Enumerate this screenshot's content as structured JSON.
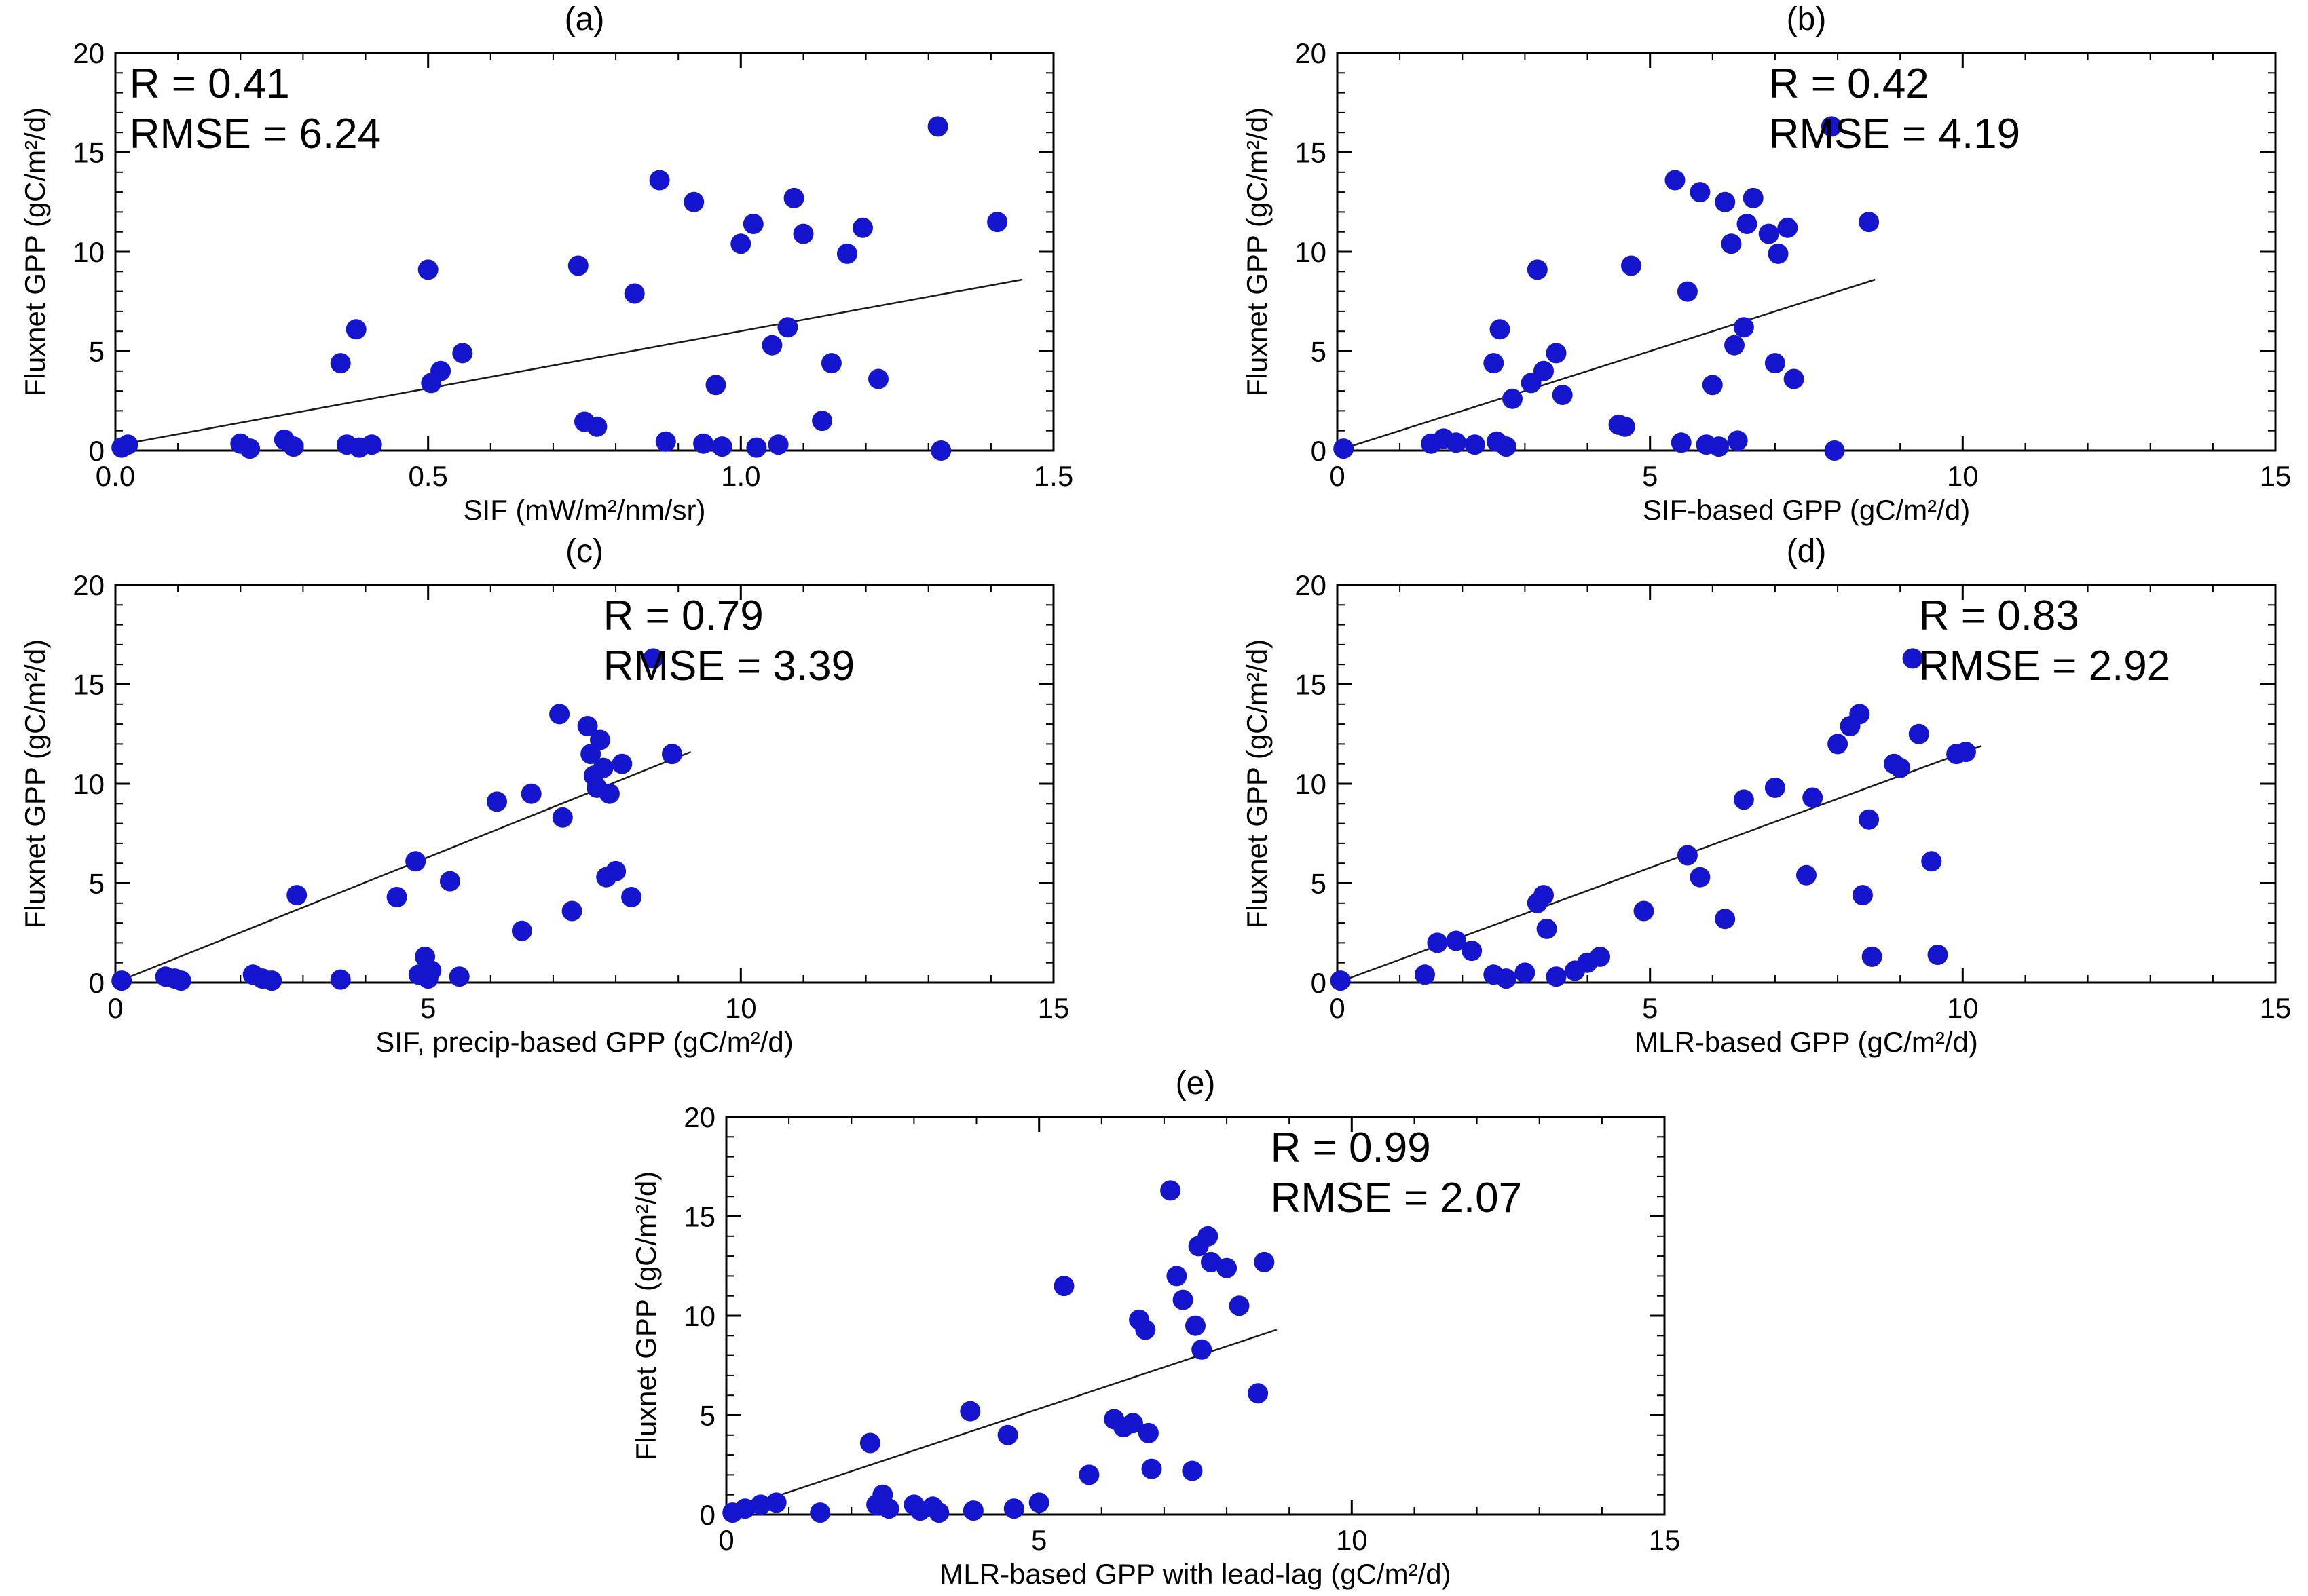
{
  "figure": {
    "background_color": "#ffffff",
    "point_color": "#1515ce",
    "fit_line_color": "#1a1a1a",
    "axis_color": "#000000"
  },
  "chart_data": [
    {
      "panel_label": "(a)",
      "type": "scatter",
      "xlabel": "SIF (mW/m²/nm/sr)",
      "ylabel": "Fluxnet GPP (gC/m²/d)",
      "xlim": [
        0,
        1.5
      ],
      "ylim": [
        0,
        20
      ],
      "xticks": [
        0,
        0.5,
        1.0,
        1.5
      ],
      "xtick_labels": [
        "0.0",
        "0.5",
        "1.0",
        "1.5"
      ],
      "yticks": [
        0,
        5,
        10,
        15,
        20
      ],
      "ytick_labels": [
        "0",
        "5",
        "10",
        "15",
        "20"
      ],
      "x_minor": 0.1,
      "y_minor": 1,
      "grid": false,
      "annotation": {
        "lines": [
          "R = 0.41",
          "RMSE = 6.24"
        ],
        "position": "top-left",
        "x_frac": 0.015
      },
      "fit_line": {
        "x1": 0.0,
        "y1": 0.25,
        "x2": 1.45,
        "y2": 8.6
      },
      "points": [
        [
          0.01,
          0.15
        ],
        [
          0.02,
          0.3
        ],
        [
          0.2,
          0.35
        ],
        [
          0.215,
          0.1
        ],
        [
          0.27,
          0.55
        ],
        [
          0.285,
          0.2
        ],
        [
          0.36,
          4.4
        ],
        [
          0.37,
          0.3
        ],
        [
          0.385,
          6.1
        ],
        [
          0.39,
          0.15
        ],
        [
          0.41,
          0.3
        ],
        [
          0.5,
          9.1
        ],
        [
          0.505,
          3.4
        ],
        [
          0.52,
          4.0
        ],
        [
          0.555,
          4.9
        ],
        [
          0.74,
          9.3
        ],
        [
          0.75,
          1.45
        ],
        [
          0.77,
          1.2
        ],
        [
          0.83,
          7.9
        ],
        [
          0.87,
          13.6
        ],
        [
          0.88,
          0.45
        ],
        [
          0.925,
          12.5
        ],
        [
          0.94,
          0.35
        ],
        [
          0.96,
          3.3
        ],
        [
          0.97,
          0.2
        ],
        [
          1.0,
          10.4
        ],
        [
          1.02,
          11.4
        ],
        [
          1.025,
          0.15
        ],
        [
          1.05,
          5.3
        ],
        [
          1.06,
          0.3
        ],
        [
          1.075,
          6.2
        ],
        [
          1.085,
          12.7
        ],
        [
          1.1,
          10.9
        ],
        [
          1.13,
          1.5
        ],
        [
          1.145,
          4.4
        ],
        [
          1.17,
          9.9
        ],
        [
          1.195,
          11.2
        ],
        [
          1.22,
          3.6
        ],
        [
          1.315,
          16.3
        ],
        [
          1.32,
          0.0
        ],
        [
          1.41,
          11.5
        ]
      ]
    },
    {
      "panel_label": "(b)",
      "type": "scatter",
      "xlabel": "SIF-based GPP (gC/m²/d)",
      "ylabel": "Fluxnet GPP (gC/m²/d)",
      "xlim": [
        0,
        15
      ],
      "ylim": [
        0,
        20
      ],
      "xticks": [
        0,
        5,
        10,
        15
      ],
      "xtick_labels": [
        "0",
        "5",
        "10",
        "15"
      ],
      "yticks": [
        0,
        5,
        10,
        15,
        20
      ],
      "ytick_labels": [
        "0",
        "5",
        "10",
        "15",
        "20"
      ],
      "x_minor": 1,
      "y_minor": 1,
      "grid": false,
      "annotation": {
        "lines": [
          "R = 0.42",
          "RMSE = 4.19"
        ],
        "position": "top-right",
        "x_frac": 0.46
      },
      "fit_line": {
        "x1": 0.0,
        "y1": 0.0,
        "x2": 8.6,
        "y2": 8.6
      },
      "points": [
        [
          0.1,
          0.1
        ],
        [
          1.5,
          0.35
        ],
        [
          1.7,
          0.6
        ],
        [
          1.9,
          0.4
        ],
        [
          2.2,
          0.3
        ],
        [
          2.5,
          4.4
        ],
        [
          2.55,
          0.45
        ],
        [
          2.6,
          6.1
        ],
        [
          2.7,
          0.2
        ],
        [
          2.8,
          2.6
        ],
        [
          3.1,
          3.4
        ],
        [
          3.2,
          9.1
        ],
        [
          3.3,
          4.0
        ],
        [
          3.5,
          4.9
        ],
        [
          3.6,
          2.8
        ],
        [
          4.5,
          1.3
        ],
        [
          4.6,
          1.2
        ],
        [
          4.7,
          9.3
        ],
        [
          5.4,
          13.6
        ],
        [
          5.5,
          0.4
        ],
        [
          5.6,
          8.0
        ],
        [
          5.8,
          13.0
        ],
        [
          5.9,
          0.3
        ],
        [
          6.0,
          3.3
        ],
        [
          6.1,
          0.2
        ],
        [
          6.2,
          12.5
        ],
        [
          6.3,
          10.4
        ],
        [
          6.35,
          5.3
        ],
        [
          6.4,
          0.5
        ],
        [
          6.5,
          6.2
        ],
        [
          6.55,
          11.4
        ],
        [
          6.65,
          12.7
        ],
        [
          6.9,
          10.9
        ],
        [
          7.0,
          4.4
        ],
        [
          7.05,
          9.9
        ],
        [
          7.2,
          11.2
        ],
        [
          7.3,
          3.6
        ],
        [
          7.9,
          16.3
        ],
        [
          7.95,
          0.0
        ],
        [
          8.5,
          11.5
        ]
      ]
    },
    {
      "panel_label": "(c)",
      "type": "scatter",
      "xlabel": "SIF, precip-based GPP (gC/m²/d)",
      "ylabel": "Fluxnet GPP (gC/m²/d)",
      "xlim": [
        0,
        15
      ],
      "ylim": [
        0,
        20
      ],
      "xticks": [
        0,
        5,
        10,
        15
      ],
      "xtick_labels": [
        "0",
        "5",
        "10",
        "15"
      ],
      "yticks": [
        0,
        5,
        10,
        15,
        20
      ],
      "ytick_labels": [
        "0",
        "5",
        "10",
        "15",
        "20"
      ],
      "x_minor": 1,
      "y_minor": 1,
      "grid": false,
      "annotation": {
        "lines": [
          "R = 0.79",
          "RMSE = 3.39"
        ],
        "position": "top-right",
        "x_frac": 0.52
      },
      "fit_line": {
        "x1": 0.0,
        "y1": 0.0,
        "x2": 9.2,
        "y2": 11.6
      },
      "points": [
        [
          0.1,
          0.1
        ],
        [
          0.8,
          0.3
        ],
        [
          0.95,
          0.2
        ],
        [
          1.05,
          0.1
        ],
        [
          2.2,
          0.4
        ],
        [
          2.35,
          0.2
        ],
        [
          2.5,
          0.1
        ],
        [
          2.9,
          4.4
        ],
        [
          3.6,
          0.15
        ],
        [
          4.5,
          4.3
        ],
        [
          4.8,
          6.1
        ],
        [
          4.85,
          0.4
        ],
        [
          4.95,
          1.3
        ],
        [
          5.0,
          0.2
        ],
        [
          5.05,
          0.6
        ],
        [
          5.35,
          5.1
        ],
        [
          5.5,
          0.3
        ],
        [
          6.1,
          9.1
        ],
        [
          6.5,
          2.6
        ],
        [
          6.65,
          9.5
        ],
        [
          7.1,
          13.5
        ],
        [
          7.15,
          8.3
        ],
        [
          7.3,
          3.6
        ],
        [
          7.55,
          12.9
        ],
        [
          7.6,
          11.5
        ],
        [
          7.65,
          10.4
        ],
        [
          7.7,
          9.8
        ],
        [
          7.75,
          12.2
        ],
        [
          7.8,
          10.8
        ],
        [
          7.85,
          5.3
        ],
        [
          7.9,
          9.5
        ],
        [
          8.0,
          5.6
        ],
        [
          8.1,
          11.0
        ],
        [
          8.25,
          4.3
        ],
        [
          8.6,
          16.3
        ],
        [
          8.9,
          11.5
        ]
      ]
    },
    {
      "panel_label": "(d)",
      "type": "scatter",
      "xlabel": "MLR-based GPP (gC/m²/d)",
      "ylabel": "Fluxnet GPP (gC/m²/d)",
      "xlim": [
        0,
        15
      ],
      "ylim": [
        0,
        20
      ],
      "xticks": [
        0,
        5,
        10,
        15
      ],
      "xtick_labels": [
        "0",
        "5",
        "10",
        "15"
      ],
      "yticks": [
        0,
        5,
        10,
        15,
        20
      ],
      "ytick_labels": [
        "0",
        "5",
        "10",
        "15",
        "20"
      ],
      "x_minor": 1,
      "y_minor": 1,
      "grid": false,
      "annotation": {
        "lines": [
          "R = 0.83",
          "RMSE = 2.92"
        ],
        "position": "top-right",
        "x_frac": 0.62
      },
      "fit_line": {
        "x1": 0.0,
        "y1": 0.0,
        "x2": 10.3,
        "y2": 11.9
      },
      "points": [
        [
          0.05,
          0.1
        ],
        [
          1.4,
          0.4
        ],
        [
          1.6,
          2.0
        ],
        [
          1.9,
          2.1
        ],
        [
          2.15,
          1.6
        ],
        [
          2.5,
          0.4
        ],
        [
          2.7,
          0.2
        ],
        [
          3.0,
          0.5
        ],
        [
          3.2,
          4.0
        ],
        [
          3.3,
          4.4
        ],
        [
          3.35,
          2.7
        ],
        [
          3.5,
          0.3
        ],
        [
          3.8,
          0.6
        ],
        [
          4.0,
          1.0
        ],
        [
          4.2,
          1.3
        ],
        [
          4.9,
          3.6
        ],
        [
          5.6,
          6.4
        ],
        [
          5.8,
          5.3
        ],
        [
          6.2,
          3.2
        ],
        [
          6.5,
          9.2
        ],
        [
          7.0,
          9.8
        ],
        [
          7.5,
          5.4
        ],
        [
          7.6,
          9.3
        ],
        [
          8.0,
          12.0
        ],
        [
          8.2,
          12.9
        ],
        [
          8.35,
          13.5
        ],
        [
          8.4,
          4.4
        ],
        [
          8.5,
          8.2
        ],
        [
          8.55,
          1.3
        ],
        [
          8.9,
          11.0
        ],
        [
          9.0,
          10.8
        ],
        [
          9.2,
          16.3
        ],
        [
          9.3,
          12.5
        ],
        [
          9.5,
          6.1
        ],
        [
          9.6,
          1.4
        ],
        [
          9.9,
          11.5
        ],
        [
          10.05,
          11.6
        ]
      ]
    },
    {
      "panel_label": "(e)",
      "type": "scatter",
      "xlabel": "MLR-based GPP with lead-lag (gC/m²/d)",
      "ylabel": "Fluxnet GPP (gC/m²/d)",
      "xlim": [
        0,
        15
      ],
      "ylim": [
        0,
        20
      ],
      "xticks": [
        0,
        5,
        10,
        15
      ],
      "xtick_labels": [
        "0",
        "5",
        "10",
        "15"
      ],
      "yticks": [
        0,
        5,
        10,
        15,
        20
      ],
      "ytick_labels": [
        "0",
        "5",
        "10",
        "15",
        "20"
      ],
      "x_minor": 1,
      "y_minor": 1,
      "grid": false,
      "annotation": {
        "lines": [
          "R = 0.99",
          "RMSE = 2.07"
        ],
        "position": "top-right",
        "x_frac": 0.58
      },
      "fit_line": {
        "x1": 0.3,
        "y1": 0.4,
        "x2": 8.8,
        "y2": 9.3
      },
      "points": [
        [
          0.1,
          0.1
        ],
        [
          0.3,
          0.3
        ],
        [
          0.55,
          0.5
        ],
        [
          0.8,
          0.6
        ],
        [
          1.5,
          0.1
        ],
        [
          2.3,
          3.6
        ],
        [
          2.4,
          0.5
        ],
        [
          2.5,
          1.0
        ],
        [
          2.6,
          0.3
        ],
        [
          3.0,
          0.5
        ],
        [
          3.1,
          0.2
        ],
        [
          3.3,
          0.4
        ],
        [
          3.4,
          0.1
        ],
        [
          3.9,
          5.2
        ],
        [
          3.95,
          0.2
        ],
        [
          4.5,
          4.0
        ],
        [
          4.6,
          0.3
        ],
        [
          5.0,
          0.6
        ],
        [
          5.4,
          11.5
        ],
        [
          5.8,
          2.0
        ],
        [
          6.2,
          4.8
        ],
        [
          6.35,
          4.4
        ],
        [
          6.5,
          4.6
        ],
        [
          6.6,
          9.8
        ],
        [
          6.7,
          9.3
        ],
        [
          6.75,
          4.1
        ],
        [
          6.8,
          2.3
        ],
        [
          7.1,
          16.3
        ],
        [
          7.2,
          12.0
        ],
        [
          7.3,
          10.8
        ],
        [
          7.45,
          2.2
        ],
        [
          7.5,
          9.5
        ],
        [
          7.55,
          13.5
        ],
        [
          7.6,
          8.3
        ],
        [
          7.7,
          14.0
        ],
        [
          7.75,
          12.7
        ],
        [
          8.0,
          12.4
        ],
        [
          8.2,
          10.5
        ],
        [
          8.5,
          6.1
        ],
        [
          8.6,
          12.7
        ]
      ]
    }
  ]
}
